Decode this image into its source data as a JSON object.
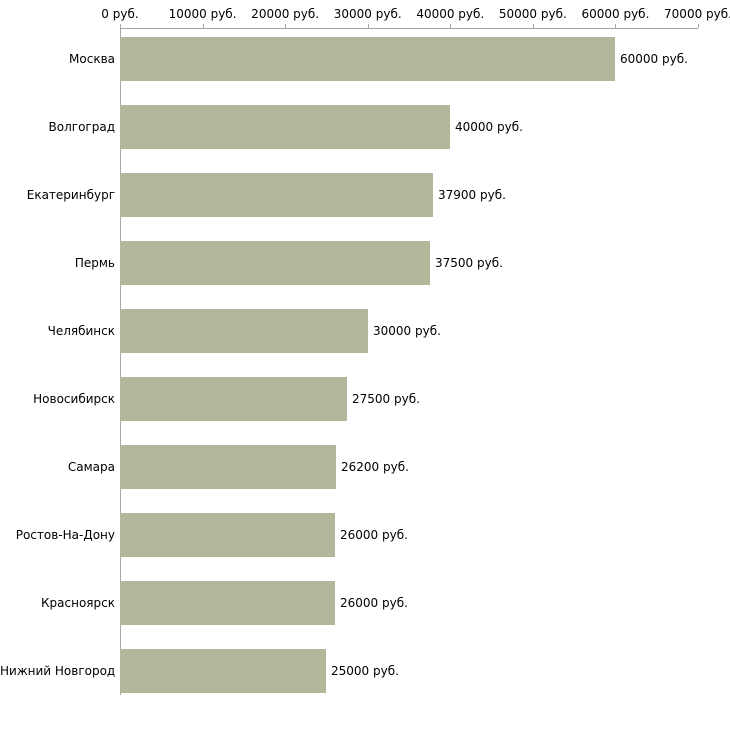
{
  "chart_data": {
    "type": "bar",
    "orientation": "horizontal",
    "title": "",
    "xlabel": "",
    "ylabel": "",
    "categories": [
      "Москва",
      "Волгоград",
      "Екатеринбург",
      "Пермь",
      "Челябинск",
      "Новосибирск",
      "Самара",
      "Ростов-На-Дону",
      "Красноярск",
      "Нижний Новгород"
    ],
    "values": [
      60000,
      40000,
      37900,
      37500,
      30000,
      27500,
      26200,
      26000,
      26000,
      25000
    ],
    "value_labels": [
      "60000 руб.",
      "40000 руб.",
      "37900 руб.",
      "37500 руб.",
      "30000 руб.",
      "27500 руб.",
      "26200 руб.",
      "26000 руб.",
      "25000 руб."
    ],
    "value_labels_full": [
      "60000 руб.",
      "40000 руб.",
      "37900 руб.",
      "37500 руб.",
      "30000 руб.",
      "27500 руб.",
      "26200 руб.",
      "26000 руб.",
      "26000 руб.",
      "25000 руб."
    ],
    "x_tick_values": [
      0,
      10000,
      20000,
      30000,
      40000,
      50000,
      60000,
      70000
    ],
    "x_tick_labels": [
      "0 руб.",
      "10000 руб.",
      "20000 руб.",
      "30000 руб.",
      "40000 руб.",
      "50000 руб.",
      "60000 руб.",
      "70000 руб."
    ],
    "xlim": [
      0,
      70000
    ],
    "grid": false,
    "legend": false,
    "unit": "руб.",
    "colors": {
      "bar": "#b2b89a",
      "axis": "#a6a6a6",
      "text": "#000000",
      "background": "#ffffff"
    }
  }
}
